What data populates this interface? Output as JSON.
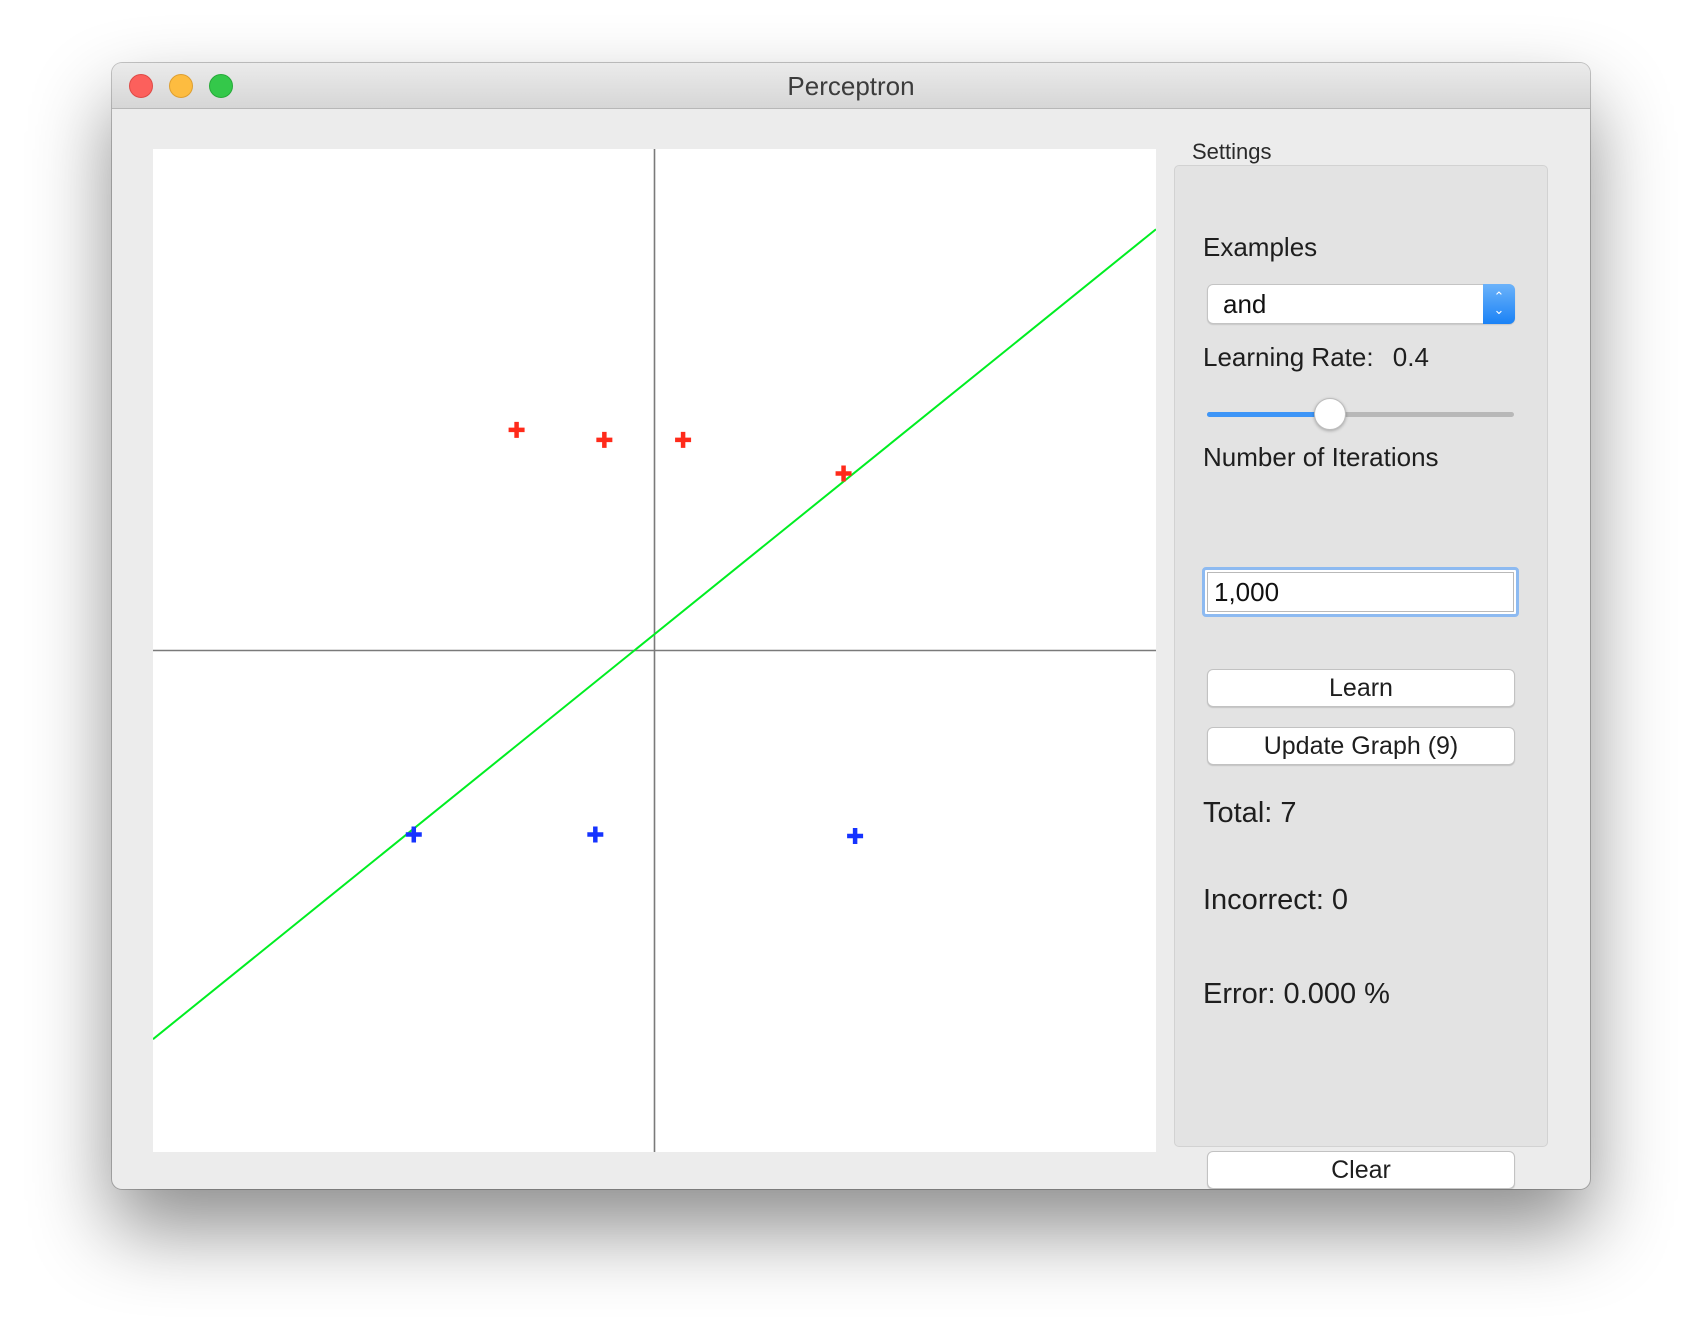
{
  "window": {
    "title": "Perceptron"
  },
  "chart_data": {
    "type": "scatter",
    "xlim": [
      -1,
      1
    ],
    "ylim": [
      -1,
      1
    ],
    "axes_lines": true,
    "grid": false,
    "series": [
      {
        "class": "positive",
        "color": "#ff2a1a",
        "points": [
          [
            -0.275,
            0.44
          ],
          [
            -0.1,
            0.42
          ],
          [
            0.057,
            0.42
          ],
          [
            0.377,
            0.353
          ]
        ]
      },
      {
        "class": "negative",
        "color": "#1533ff",
        "points": [
          [
            -0.48,
            -0.367
          ],
          [
            -0.118,
            -0.367
          ],
          [
            0.4,
            -0.37
          ]
        ]
      }
    ],
    "decision_line": {
      "color": "#00ee22",
      "points": [
        [
          -1,
          -0.775
        ],
        [
          1,
          0.84
        ]
      ]
    }
  },
  "settings": {
    "group_label": "Settings",
    "examples_label": "Examples",
    "examples_selected": "and",
    "learning_rate_label": "Learning Rate:",
    "learning_rate_value": "0.4",
    "learning_rate_fraction": 0.4,
    "iterations_label": "Number of Iterations",
    "iterations_value": "1,000",
    "learn_button": "Learn",
    "update_button": "Update Graph (9)",
    "total": "Total: 7",
    "incorrect": "Incorrect: 0",
    "error": "Error: 0.000 %",
    "clear_button": "Clear"
  },
  "colors": {
    "close": "#fc605c",
    "minimize": "#fdbc40",
    "zoom": "#34c84a",
    "accent": "#3d95f7"
  },
  "icons": {
    "stepper": "up-down-chevron-icon"
  }
}
